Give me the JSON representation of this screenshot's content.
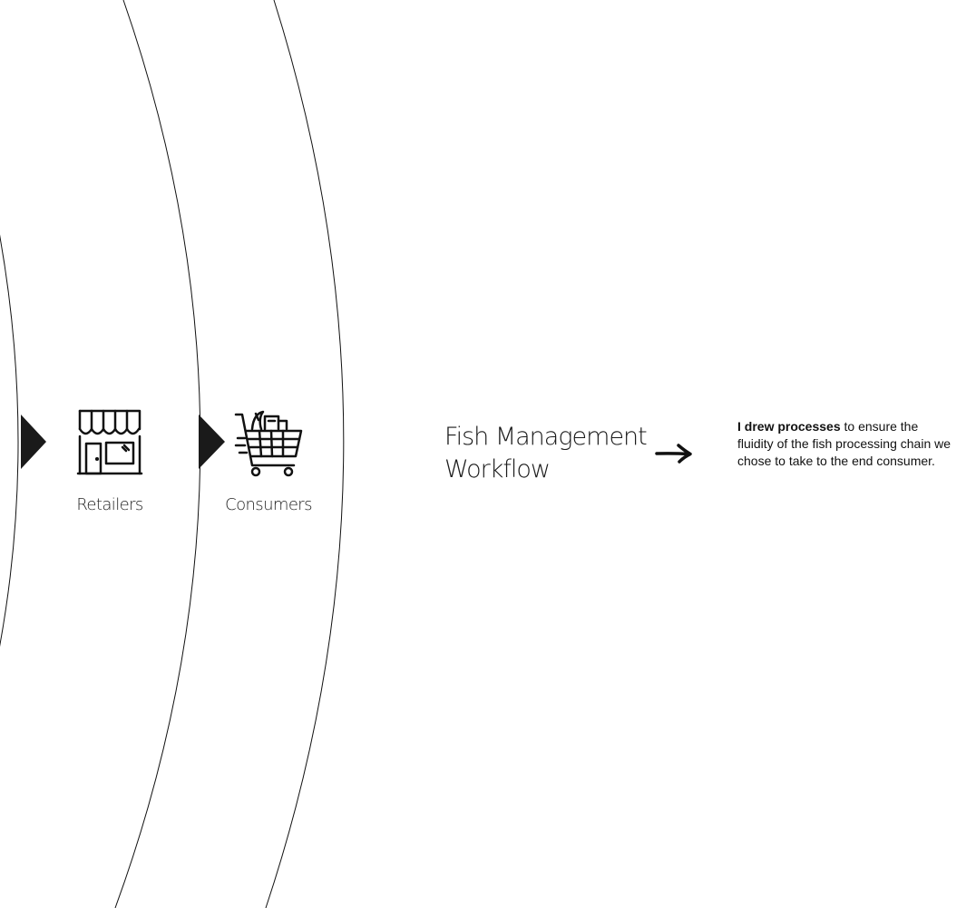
{
  "stages": [
    {
      "label": "Retailers",
      "icon": "store-icon"
    },
    {
      "label": "Consumers",
      "icon": "shopping-cart-icon"
    }
  ],
  "title": {
    "line1": "Fish Management",
    "line2": "Workflow"
  },
  "description": {
    "bold": "I drew processes",
    "rest": " to ensure the fluidity of the fish processing chain we chose to take to the end consumer."
  },
  "colors": {
    "stroke": "#111111",
    "marker": "#1a1a1a",
    "text": "#222222"
  }
}
